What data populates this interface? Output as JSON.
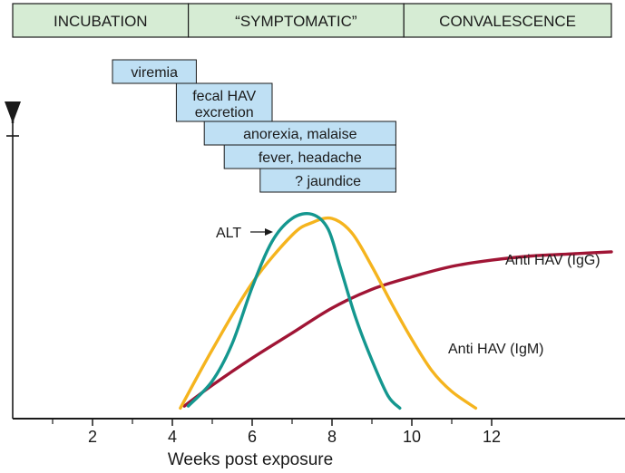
{
  "chart_data": {
    "type": "line",
    "xlabel": "Weeks post exposure",
    "ylabel": "",
    "xlim": [
      0,
      15
    ],
    "ylim": [
      0,
      1
    ],
    "x_ticks": [
      2,
      4,
      6,
      8,
      10,
      12
    ],
    "x_ticks_minor": [
      1,
      3,
      5,
      7,
      9,
      11
    ],
    "phases": [
      {
        "label": "INCUBATION",
        "start": 0,
        "end": 4.4
      },
      {
        "label": "“SYMPTOMATIC”",
        "start": 4.4,
        "end": 9.8
      },
      {
        "label": "CONVALESCENCE",
        "start": 9.8,
        "end": 15
      }
    ],
    "periods": [
      {
        "lines": [
          "viremia"
        ],
        "start": 2.5,
        "end": 4.6
      },
      {
        "lines": [
          "fecal HAV",
          "excretion"
        ],
        "start": 4.1,
        "end": 6.5
      },
      {
        "lines": [
          "anorexia, malaise"
        ],
        "start": 4.8,
        "end": 9.6
      },
      {
        "lines": [
          "fever, headache"
        ],
        "start": 5.3,
        "end": 9.6
      },
      {
        "lines": [
          "? jaundice"
        ],
        "start": 6.2,
        "end": 9.6
      }
    ],
    "series": [
      {
        "name": "ALT",
        "color": "#14978f",
        "x": [
          4.4,
          5.0,
          5.5,
          6.0,
          6.5,
          7.0,
          7.5,
          7.9,
          8.2,
          8.6,
          9.0,
          9.4,
          9.7
        ],
        "y": [
          0.03,
          0.15,
          0.33,
          0.6,
          0.82,
          0.93,
          0.95,
          0.88,
          0.7,
          0.45,
          0.25,
          0.08,
          0.02
        ]
      },
      {
        "name": "Anti HAV (IgM)",
        "color": "#f5b41e",
        "x": [
          4.2,
          5.0,
          6.0,
          7.0,
          7.5,
          8.0,
          8.5,
          9.0,
          9.5,
          10.0,
          10.5,
          11.0,
          11.6
        ],
        "y": [
          0.02,
          0.3,
          0.62,
          0.85,
          0.91,
          0.93,
          0.86,
          0.7,
          0.52,
          0.35,
          0.2,
          0.1,
          0.02
        ]
      },
      {
        "name": "Anti HAV (IgG)",
        "color": "#a01535",
        "x": [
          4.3,
          5.0,
          6.0,
          7.0,
          8.0,
          9.0,
          10.0,
          11.0,
          12.0,
          13.0,
          14.0,
          15.0
        ],
        "y": [
          0.03,
          0.13,
          0.26,
          0.38,
          0.5,
          0.59,
          0.65,
          0.7,
          0.73,
          0.75,
          0.76,
          0.77
        ]
      }
    ],
    "annotations": {
      "alt_label": "ALT",
      "igm_label": "Anti HAV (IgM)",
      "igg_label": "Anti HAV (IgG)"
    },
    "colors": {
      "phase_bar": "#d6ecd4",
      "period_box": "#bfe0f4",
      "axis": "#1a1a1a"
    }
  }
}
